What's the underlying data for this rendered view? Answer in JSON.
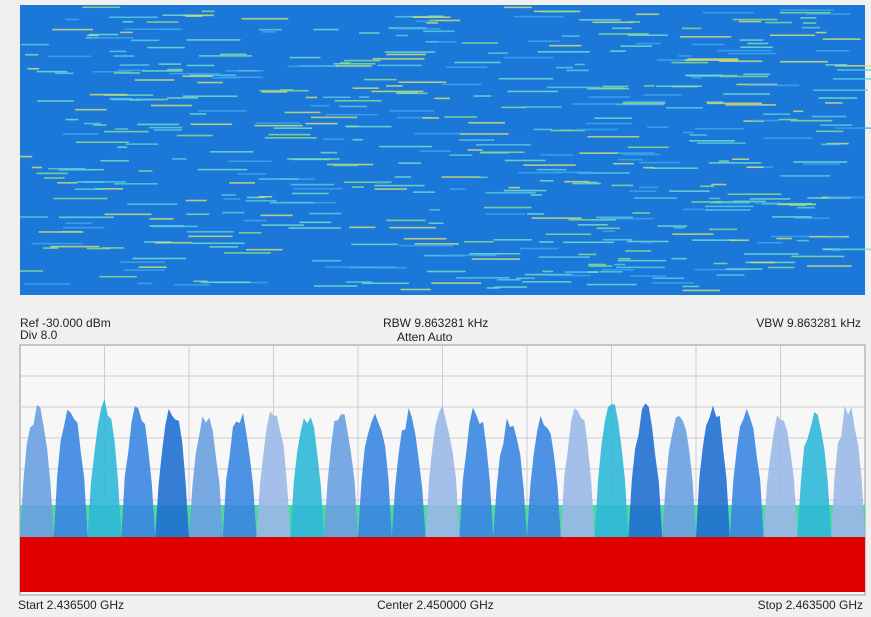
{
  "header": {
    "ref": "Ref -30.000 dBm",
    "div": "Div 8.0",
    "rbw": "RBW 9.863281 kHz",
    "atten": "Atten Auto",
    "vbw": "VBW 9.863281 kHz"
  },
  "footer": {
    "start": "Start 2.436500 GHz",
    "center": "Center 2.450000 GHz",
    "stop": "Stop 2.463500 GHz"
  }
}
